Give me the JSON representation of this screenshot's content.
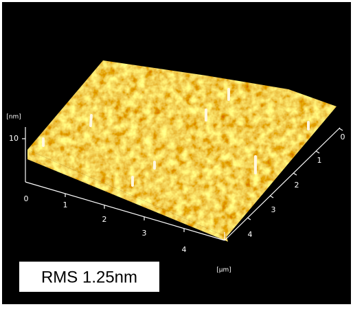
{
  "axes": {
    "z_unit": "[nm]",
    "z_ticks": [
      "10"
    ],
    "x_ticks": [
      "0",
      "1",
      "2",
      "3",
      "4"
    ],
    "y_ticks": [
      "0",
      "1",
      "2",
      "3",
      "4"
    ],
    "xy_unit": "[μm]"
  },
  "annotation": "RMS 1.25nm"
}
